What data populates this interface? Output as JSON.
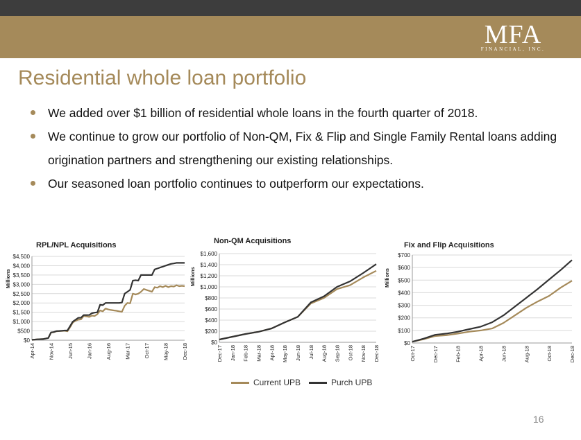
{
  "header": {
    "logo_main": "MFA",
    "logo_sub": "FINANCIAL, INC."
  },
  "title": "Residential whole loan portfolio",
  "bullets": [
    "We added over $1 billion of residential whole loans in the fourth quarter of 2018.",
    "We continue to grow our portfolio of Non-QM, Fix & Flip and Single Family Rental loans adding origination partners and strengthening our existing relationships.",
    "Our seasoned loan portfolio continues to outperform our expectations."
  ],
  "legend": {
    "current": "Current UPB",
    "purch": "Purch UPB"
  },
  "page_number": "16",
  "colors": {
    "dark_bar": "#3d3d3d",
    "gold": "#a58a5a",
    "current_line": "#a58a5a",
    "purch_line": "#333333"
  },
  "chart_data": [
    {
      "type": "line",
      "title": "RPL/NPL Acquisitions",
      "ylabel": "Millions",
      "ylim": [
        0,
        4500
      ],
      "yticks": [
        0,
        500,
        1000,
        1500,
        2000,
        2500,
        3000,
        3500,
        4000,
        4500
      ],
      "ytick_labels": [
        "$0",
        "$500",
        "$1,000",
        "$1,500",
        "$2,000",
        "$2,500",
        "$3,000",
        "$3,500",
        "$4,000",
        "$4,500"
      ],
      "xtick_labels": [
        "Apr-14",
        "Nov-14",
        "Jun-15",
        "Jan-16",
        "Aug-16",
        "Mar-17",
        "Oct-17",
        "May-18",
        "Dec-18"
      ],
      "grid": true,
      "series": [
        {
          "name": "Current UPB",
          "x": [
            0,
            2,
            4,
            6,
            7,
            8,
            9,
            10,
            11,
            12,
            13,
            14,
            15,
            16,
            17,
            18,
            19,
            20,
            21,
            22,
            23,
            24,
            25,
            26,
            27,
            28,
            29,
            30,
            31,
            32,
            33,
            34,
            35,
            36,
            37,
            38,
            39,
            40,
            41,
            42,
            43,
            44,
            45,
            46,
            47,
            48,
            49,
            50,
            51,
            52,
            53,
            54,
            55,
            56
          ],
          "values": [
            20,
            50,
            60,
            120,
            410,
            430,
            480,
            490,
            500,
            510,
            480,
            700,
            950,
            1050,
            1100,
            1120,
            1300,
            1280,
            1250,
            1320,
            1300,
            1400,
            1600,
            1550,
            1700,
            1650,
            1620,
            1600,
            1580,
            1550,
            1520,
            1850,
            2000,
            1980,
            2500,
            2450,
            2500,
            2600,
            2750,
            2700,
            2650,
            2600,
            2850,
            2820,
            2900,
            2850,
            2920,
            2850,
            2900,
            2880,
            2950,
            2900,
            2920,
            2900
          ]
        },
        {
          "name": "Purch UPB",
          "x": [
            0,
            2,
            4,
            6,
            7,
            8,
            9,
            10,
            11,
            12,
            13,
            14,
            15,
            16,
            17,
            18,
            19,
            20,
            21,
            22,
            23,
            24,
            25,
            26,
            27,
            28,
            29,
            30,
            31,
            32,
            33,
            34,
            35,
            36,
            37,
            38,
            39,
            40,
            41,
            42,
            43,
            44,
            45,
            46,
            47,
            48,
            49,
            50,
            51,
            52,
            53,
            54,
            55,
            56
          ],
          "values": [
            20,
            50,
            60,
            120,
            420,
            440,
            490,
            500,
            510,
            520,
            520,
            760,
            1000,
            1100,
            1200,
            1210,
            1350,
            1350,
            1350,
            1450,
            1480,
            1500,
            1900,
            1880,
            2000,
            2000,
            2000,
            2000,
            2000,
            2000,
            2020,
            2500,
            2600,
            2700,
            3200,
            3220,
            3200,
            3500,
            3500,
            3500,
            3500,
            3500,
            3800,
            3850,
            3900,
            3950,
            4000,
            4050,
            4100,
            4120,
            4150,
            4150,
            4150,
            4150
          ]
        }
      ]
    },
    {
      "type": "line",
      "title": "Non-QM Acquisitions",
      "ylabel": "Millions",
      "ylim": [
        0,
        1600
      ],
      "yticks": [
        0,
        200,
        400,
        600,
        800,
        1000,
        1200,
        1400,
        1600
      ],
      "ytick_labels": [
        "$0",
        "$200",
        "$400",
        "$600",
        "$800",
        "$1,000",
        "$1,200",
        "$1,400",
        "$1,600"
      ],
      "xtick_labels": [
        "Dec-17",
        "Jan-18",
        "Feb-18",
        "Mar-18",
        "Apr-18",
        "May-18",
        "Jun-18",
        "Jul-18",
        "Aug-18",
        "Sep-18",
        "Oct-18",
        "Nov-18",
        "Dec-18"
      ],
      "grid": true,
      "series": [
        {
          "name": "Current UPB",
          "values": [
            50,
            100,
            150,
            190,
            250,
            360,
            460,
            700,
            800,
            960,
            1030,
            1170,
            1290
          ]
        },
        {
          "name": "Purch UPB",
          "values": [
            50,
            100,
            150,
            190,
            250,
            360,
            460,
            720,
            830,
            1000,
            1100,
            1250,
            1410
          ]
        }
      ]
    },
    {
      "type": "line",
      "title": "Fix and Flip Acquisitions",
      "ylabel": "Millions",
      "ylim": [
        0,
        700
      ],
      "yticks": [
        0,
        100,
        200,
        300,
        400,
        500,
        600,
        700
      ],
      "ytick_labels": [
        "$0",
        "$100",
        "$200",
        "$300",
        "$400",
        "$500",
        "$600",
        "$700"
      ],
      "xtick_labels": [
        "Oct-17",
        "Dec-17",
        "Feb-18",
        "Apr-18",
        "Jun-18",
        "Aug-18",
        "Oct-18",
        "Dec-18"
      ],
      "x_months": 15,
      "grid": true,
      "series": [
        {
          "name": "Current UPB",
          "values": [
            10,
            30,
            55,
            62,
            75,
            90,
            100,
            115,
            160,
            220,
            280,
            330,
            375,
            440,
            495
          ]
        },
        {
          "name": "Purch UPB",
          "values": [
            10,
            35,
            65,
            75,
            90,
            110,
            130,
            165,
            220,
            290,
            360,
            430,
            505,
            580,
            660
          ]
        }
      ]
    }
  ]
}
